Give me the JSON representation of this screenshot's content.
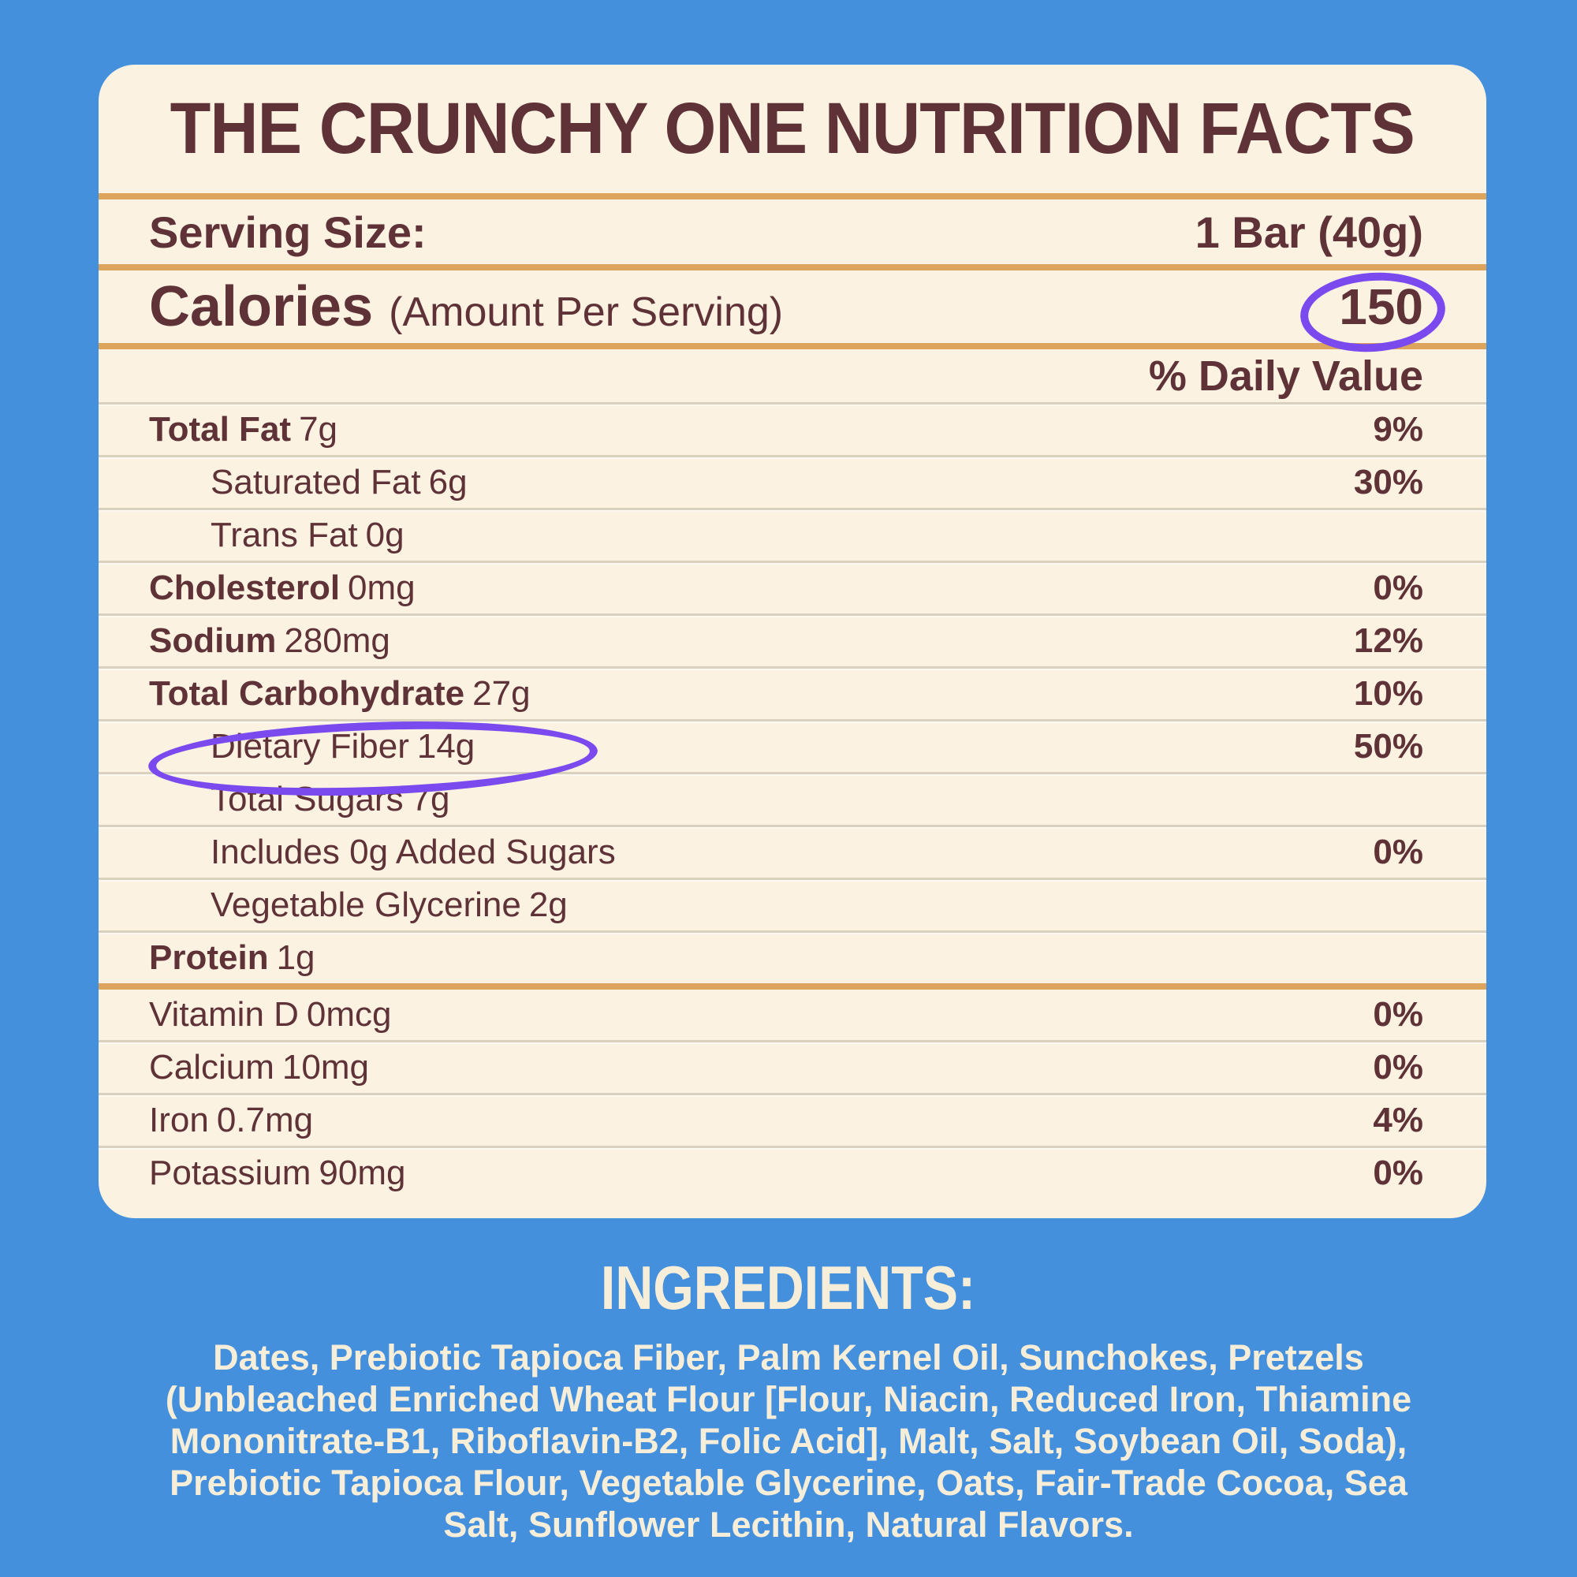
{
  "colors": {
    "background_blue": "#4590DC",
    "card_cream": "#FBF2E1",
    "text_brown": "#5E3237",
    "rule_gold": "#DCA45C",
    "separator": "#D9D0BD",
    "annotation_purple": "#7B4AEE",
    "ingredients_text": "#F7EEDA"
  },
  "label": {
    "title": "THE CRUNCHY ONE NUTRITION FACTS",
    "serving": {
      "label": "Serving Size:",
      "value": "1 Bar (40g)"
    },
    "calories": {
      "label": "Calories",
      "sub": "(Amount Per Serving)",
      "value": "150"
    },
    "daily_value_header": "% Daily Value",
    "rows": [
      {
        "name": "Total Fat",
        "amount": "7g",
        "pct": "9%"
      },
      {
        "name": "Saturated Fat",
        "amount": "6g",
        "pct": "30%"
      },
      {
        "name": "Trans Fat",
        "amount": "0g",
        "pct": ""
      },
      {
        "name": "Cholesterol",
        "amount": "0mg",
        "pct": "0%"
      },
      {
        "name": "Sodium",
        "amount": "280mg",
        "pct": "12%"
      },
      {
        "name": "Total Carbohydrate",
        "amount": "27g",
        "pct": "10%"
      },
      {
        "name": "Dietary Fiber",
        "amount": "14g",
        "pct": "50%"
      },
      {
        "name": "Total Sugars",
        "amount": "7g",
        "pct": ""
      },
      {
        "name": "Includes 0g Added Sugars",
        "amount": "",
        "pct": "0%"
      },
      {
        "name": "Vegetable Glycerine",
        "amount": "2g",
        "pct": ""
      },
      {
        "name": "Protein",
        "amount": "1g",
        "pct": ""
      }
    ],
    "micros": [
      {
        "name": "Vitamin D",
        "amount": "0mcg",
        "pct": "0%"
      },
      {
        "name": "Calcium",
        "amount": "10mg",
        "pct": "0%"
      },
      {
        "name": "Iron",
        "amount": "0.7mg",
        "pct": "4%"
      },
      {
        "name": "Potassium",
        "amount": "90mg",
        "pct": "0%"
      }
    ],
    "annotations": {
      "circled_calories_value": "150",
      "circled_row": "Dietary Fiber 14g"
    }
  },
  "ingredients": {
    "heading": "INGREDIENTS:",
    "lines": [
      "Dates, Prebiotic Tapioca Fiber, Palm Kernel Oil, Sunchokes, Pretzels",
      "(Unbleached Enriched Wheat Flour [Flour, Niacin, Reduced Iron, Thiamine",
      "Mononitrate-B1, Riboflavin-B2, Folic Acid], Malt, Salt, Soybean Oil, Soda),",
      "Prebiotic Tapioca Flour, Vegetable Glycerine, Oats, Fair-Trade Cocoa, Sea",
      "Salt, Sunflower Lecithin, Natural Flavors."
    ]
  }
}
